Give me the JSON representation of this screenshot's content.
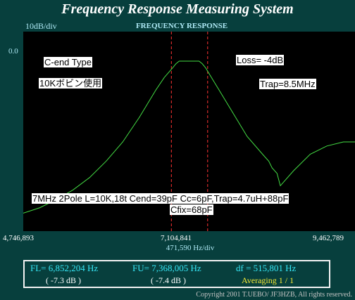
{
  "app": {
    "title": "Frequency Response Measuring System"
  },
  "display": {
    "scale_label": "10dB/div",
    "chart_title": "FREQUENCY RESPONSE",
    "ref_level": "0.0",
    "x_start": "4,746,893",
    "x_center": "7,104,841",
    "x_end": "9,462,789",
    "x_resolution": "471,590  Hz/div"
  },
  "annotations": {
    "type": "C-end  Type",
    "bobbin": "10Kボビン使用",
    "loss": "Loss= -4dB",
    "trap": "Trap=8.5MHz",
    "config_line1": "7MHz 2Pole  L=10K,18t Cend=39pF Cc=6pF,Trap=4.7uH+88pF",
    "config_line2": "Cfix=68pF"
  },
  "status": {
    "fl": "FL= 6,852,204  Hz",
    "fl_db": "( -7.3 dB )",
    "fu": "FU= 7,368,005  Hz",
    "fu_db": "( -7.4 dB )",
    "df": "df = 515,801  Hz",
    "averaging": "Averaging   1 / 1"
  },
  "copyright": "Copyright 2001 T.UEBO/ JF3HZB, All rights reserved.",
  "colors": {
    "trace": "#44dd44",
    "marker": "#ff3333",
    "background": "#073f3d",
    "plot_background": "#000000"
  },
  "chart_data": {
    "type": "line",
    "xlabel": "471,590  Hz/div",
    "ylabel": "10dB/div",
    "xlim": [
      4746893,
      9462789
    ],
    "ylim": [
      -80,
      0
    ],
    "markers_hz": [
      6852204,
      7368005
    ],
    "series": [
      {
        "x": [
          4746893,
          4982688,
          5218484,
          5454279,
          5690074,
          5925869,
          6161664,
          6397460,
          6633255,
          6751152,
          6869050,
          6916208,
          6963366,
          7104841,
          7246316,
          7293475,
          7340634,
          7458531,
          7694326,
          7930122,
          8165917,
          8236655,
          8284054,
          8354792,
          8401951,
          8590587,
          8826382,
          9062178,
          9298003,
          9462789
        ],
        "y": [
          -56,
          -54,
          -51,
          -47.5,
          -43,
          -37,
          -30,
          -21,
          -11,
          -6.5,
          -3,
          -1.5,
          -0.5,
          -0.5,
          -0.5,
          -1.5,
          -3,
          -8,
          -18,
          -28,
          -35,
          -37,
          -39.5,
          -41.5,
          -46,
          -40.5,
          -34.5,
          -31.5,
          -30,
          -30
        ]
      }
    ]
  }
}
